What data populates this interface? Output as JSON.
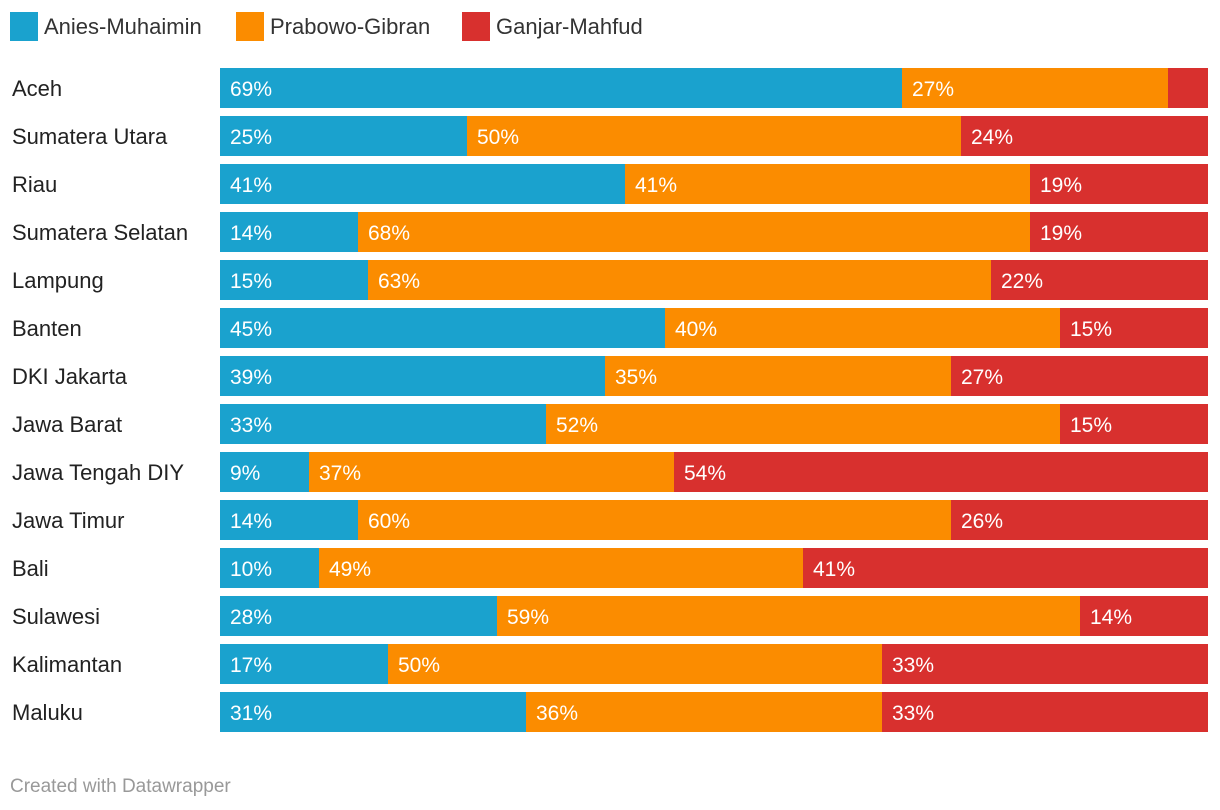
{
  "chart_data": {
    "type": "bar",
    "orientation": "horizontal",
    "stacked": true,
    "xlim": [
      0,
      100
    ],
    "unit": "%",
    "legend_position": "top-left",
    "grid": false,
    "categories": [
      "Aceh",
      "Sumatera Utara",
      "Riau",
      "Sumatera Selatan",
      "Lampung",
      "Banten",
      "DKI Jakarta",
      "Jawa Barat",
      "Jawa Tengah DIY",
      "Jawa Timur",
      "Bali",
      "Sulawesi",
      "Kalimantan",
      "Maluku"
    ],
    "series": [
      {
        "name": "Anies-Muhaimin",
        "color": "#1aa2ce",
        "values": [
          69,
          25,
          41,
          14,
          15,
          45,
          39,
          33,
          9,
          14,
          10,
          28,
          17,
          31
        ],
        "labels": [
          "69%",
          "25%",
          "41%",
          "14%",
          "15%",
          "45%",
          "39%",
          "33%",
          "9%",
          "14%",
          "10%",
          "28%",
          "17%",
          "31%"
        ]
      },
      {
        "name": "Prabowo-Gibran",
        "color": "#fb8c00",
        "values": [
          27,
          50,
          41,
          68,
          63,
          40,
          35,
          52,
          37,
          60,
          49,
          59,
          50,
          36
        ],
        "labels": [
          "27%",
          "50%",
          "41%",
          "68%",
          "63%",
          "40%",
          "35%",
          "52%",
          "37%",
          "60%",
          "49%",
          "59%",
          "50%",
          "36%"
        ]
      },
      {
        "name": "Ganjar-Mahfud",
        "color": "#d8302e",
        "values": [
          4,
          24,
          19,
          19,
          22,
          15,
          27,
          15,
          54,
          26,
          41,
          14,
          33,
          33
        ],
        "labels": [
          "",
          "24%",
          "19%",
          "19%",
          "22%",
          "15%",
          "27%",
          "15%",
          "54%",
          "26%",
          "41%",
          "14%",
          "33%",
          "33%"
        ]
      }
    ]
  },
  "footer": {
    "credit": "Created with Datawrapper"
  }
}
